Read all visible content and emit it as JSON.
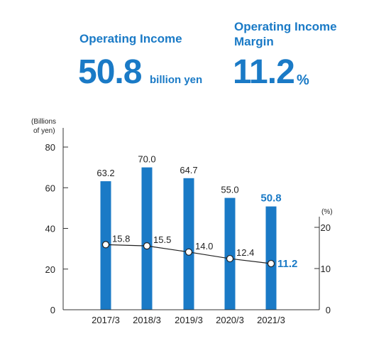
{
  "kpis": {
    "income_label": "Operating Income",
    "income_value": "50.8",
    "income_unit": "billion yen",
    "margin_label_line1": "Operating Income",
    "margin_label_line2": "Margin",
    "margin_value": "11.2",
    "margin_unit": "%"
  },
  "colors": {
    "accent": "#1a7ac6",
    "axis": "#333333",
    "line": "#222222"
  },
  "chart_data": {
    "type": "bar",
    "title": "",
    "categories": [
      "2017/3",
      "2018/3",
      "2019/3",
      "2020/3",
      "2021/3"
    ],
    "left_axis": {
      "label_line1": "(Billions",
      "label_line2": "of yen)",
      "ylim": [
        0,
        80
      ],
      "ticks": [
        "0",
        "20",
        "40",
        "60",
        "80"
      ],
      "tick_values": [
        0,
        20,
        40,
        60,
        80
      ]
    },
    "right_axis": {
      "label": "(%)",
      "ylim": [
        0,
        20
      ],
      "ticks": [
        "0",
        "10",
        "20"
      ],
      "tick_values": [
        0,
        10,
        20
      ]
    },
    "series": [
      {
        "type": "bar",
        "axis": "left",
        "values": [
          63.2,
          70.0,
          64.7,
          55.0,
          50.8
        ],
        "labels": [
          "63.2",
          "70.0",
          "64.7",
          "55.0",
          "50.8"
        ]
      },
      {
        "type": "line",
        "axis": "right",
        "values": [
          15.8,
          15.5,
          14.0,
          12.4,
          11.2
        ],
        "labels": [
          "15.8",
          "15.5",
          "14.0",
          "12.4",
          "11.2"
        ]
      }
    ],
    "grid": false,
    "legend": "none"
  }
}
